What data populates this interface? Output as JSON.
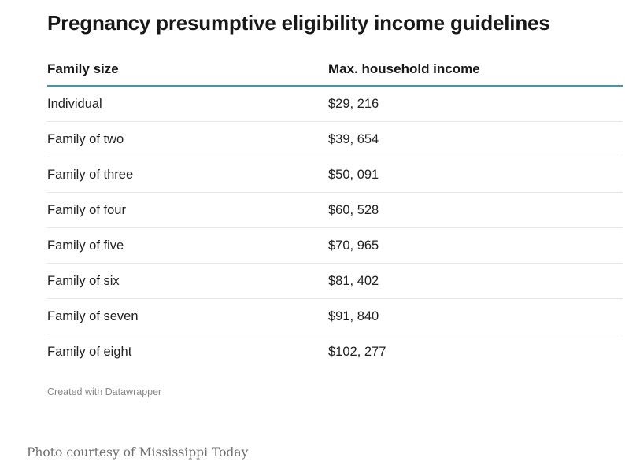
{
  "chart_data": {
    "type": "table",
    "title": "Pregnancy presumptive eligibility income guidelines",
    "columns": [
      "Family size",
      "Max. household income"
    ],
    "rows": [
      [
        "Individual",
        "$29, 216"
      ],
      [
        "Family of two",
        "$39, 654"
      ],
      [
        "Family of three",
        "$50, 091"
      ],
      [
        "Family of four",
        "$60, 528"
      ],
      [
        "Family of five",
        "$70, 965"
      ],
      [
        "Family of six",
        "$81, 402"
      ],
      [
        "Family of seven",
        "$91, 840"
      ],
      [
        "Family of eight",
        "$102, 277"
      ]
    ],
    "source": "Created with Datawrapper",
    "header_rule_color": "#3b9ab2"
  },
  "caption": "Photo courtesy of Mississippi Today"
}
